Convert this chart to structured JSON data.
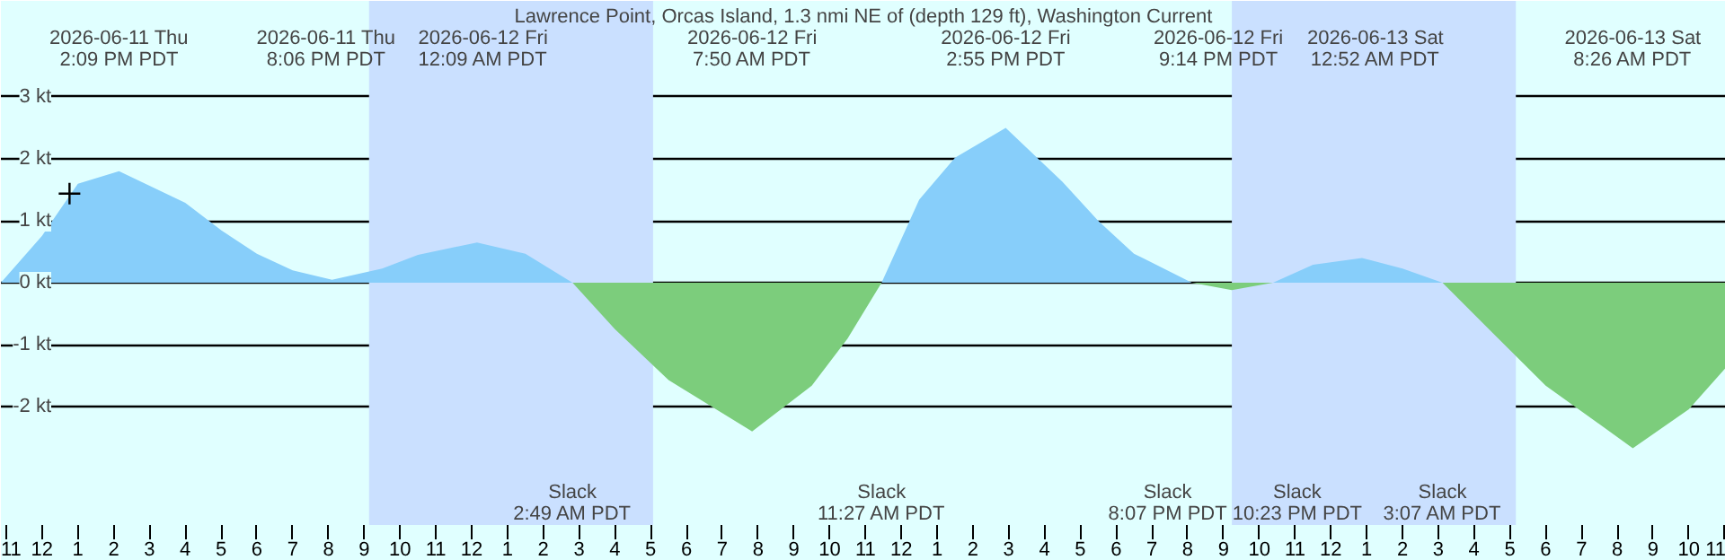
{
  "chart_data": {
    "type": "area",
    "title": "Lawrence Point, Orcas Island, 1.3 nmi NE of (depth 129 ft), Washington Current",
    "x": [
      "2026-06-11T10:51",
      "2026-06-11T12:00",
      "2026-06-11T13:00",
      "2026-06-11T14:09",
      "2026-06-11T16:00",
      "2026-06-11T17:00",
      "2026-06-11T18:00",
      "2026-06-11T19:00",
      "2026-06-11T20:06",
      "2026-06-11T21:30",
      "2026-06-11T22:30",
      "2026-06-12T00:09",
      "2026-06-12T01:30",
      "2026-06-12T02:49",
      "2026-06-12T04:00",
      "2026-06-12T05:30",
      "2026-06-12T07:50",
      "2026-06-12T09:30",
      "2026-06-12T10:30",
      "2026-06-12T11:27",
      "2026-06-12T12:30",
      "2026-06-12T13:30",
      "2026-06-12T14:55",
      "2026-06-12T16:30",
      "2026-06-12T17:30",
      "2026-06-12T18:30",
      "2026-06-12T20:07",
      "2026-06-12T21:14",
      "2026-06-12T22:23",
      "2026-06-12T23:30",
      "2026-06-13T00:52",
      "2026-06-13T02:00",
      "2026-06-13T03:07",
      "2026-06-13T04:30",
      "2026-06-13T06:00",
      "2026-06-13T08:26",
      "2026-06-13T10:00",
      "2026-06-13T11:02"
    ],
    "series": [
      {
        "color": "#87cefa",
        "values": [
          0,
          0.76,
          1.6,
          1.8,
          1.29,
          0.85,
          0.47,
          0.2,
          0.05,
          0.23,
          0.45,
          0.65,
          0.47,
          0,
          null,
          null,
          null,
          null,
          null,
          0,
          1.34,
          2.02,
          2.5,
          1.63,
          1.0,
          0.47,
          0,
          null,
          0,
          0.29,
          0.4,
          0.23,
          0,
          null,
          null,
          null,
          null,
          null
        ]
      },
      {
        "color": "#7ccd7c",
        "values": [
          null,
          null,
          null,
          null,
          null,
          null,
          null,
          null,
          null,
          null,
          null,
          null,
          null,
          0,
          -0.75,
          -1.57,
          -2.4,
          -1.66,
          -0.9,
          0,
          null,
          null,
          null,
          null,
          null,
          null,
          0,
          -0.12,
          0,
          null,
          null,
          null,
          0,
          -0.8,
          -1.66,
          -2.67,
          -2.04,
          -1.37
        ]
      },
      {
        "type": "scatter",
        "marker": "cross",
        "color": "#000000",
        "x": [
          "2026-06-11T12:46"
        ],
        "values": [
          1.44
        ]
      }
    ],
    "xlim": [
      "2026-06-11T10:51",
      "2026-06-13T11:02"
    ],
    "xticks": [
      {
        "value": "2026-06-11T11:00",
        "label": "11"
      },
      {
        "value": "2026-06-11T12:00",
        "label": "12"
      },
      {
        "value": "2026-06-11T13:00",
        "label": "1"
      },
      {
        "value": "2026-06-11T14:00",
        "label": "2"
      },
      {
        "value": "2026-06-11T15:00",
        "label": "3"
      },
      {
        "value": "2026-06-11T16:00",
        "label": "4"
      },
      {
        "value": "2026-06-11T17:00",
        "label": "5"
      },
      {
        "value": "2026-06-11T18:00",
        "label": "6"
      },
      {
        "value": "2026-06-11T19:00",
        "label": "7"
      },
      {
        "value": "2026-06-11T20:00",
        "label": "8"
      },
      {
        "value": "2026-06-11T21:00",
        "label": "9"
      },
      {
        "value": "2026-06-11T22:00",
        "label": "10"
      },
      {
        "value": "2026-06-11T23:00",
        "label": "11"
      },
      {
        "value": "2026-06-12T00:00",
        "label": "12"
      },
      {
        "value": "2026-06-12T01:00",
        "label": "1"
      },
      {
        "value": "2026-06-12T02:00",
        "label": "2"
      },
      {
        "value": "2026-06-12T03:00",
        "label": "3"
      },
      {
        "value": "2026-06-12T04:00",
        "label": "4"
      },
      {
        "value": "2026-06-12T05:00",
        "label": "5"
      },
      {
        "value": "2026-06-12T06:00",
        "label": "6"
      },
      {
        "value": "2026-06-12T07:00",
        "label": "7"
      },
      {
        "value": "2026-06-12T08:00",
        "label": "8"
      },
      {
        "value": "2026-06-12T09:00",
        "label": "9"
      },
      {
        "value": "2026-06-12T10:00",
        "label": "10"
      },
      {
        "value": "2026-06-12T11:00",
        "label": "11"
      },
      {
        "value": "2026-06-12T12:00",
        "label": "12"
      },
      {
        "value": "2026-06-12T13:00",
        "label": "1"
      },
      {
        "value": "2026-06-12T14:00",
        "label": "2"
      },
      {
        "value": "2026-06-12T15:00",
        "label": "3"
      },
      {
        "value": "2026-06-12T16:00",
        "label": "4"
      },
      {
        "value": "2026-06-12T17:00",
        "label": "5"
      },
      {
        "value": "2026-06-12T18:00",
        "label": "6"
      },
      {
        "value": "2026-06-12T19:00",
        "label": "7"
      },
      {
        "value": "2026-06-12T20:00",
        "label": "8"
      },
      {
        "value": "2026-06-12T21:00",
        "label": "9"
      },
      {
        "value": "2026-06-12T22:00",
        "label": "10"
      },
      {
        "value": "2026-06-12T23:00",
        "label": "11"
      },
      {
        "value": "2026-06-13T00:00",
        "label": "12"
      },
      {
        "value": "2026-06-13T01:00",
        "label": "1"
      },
      {
        "value": "2026-06-13T02:00",
        "label": "2"
      },
      {
        "value": "2026-06-13T03:00",
        "label": "3"
      },
      {
        "value": "2026-06-13T04:00",
        "label": "4"
      },
      {
        "value": "2026-06-13T05:00",
        "label": "5"
      },
      {
        "value": "2026-06-13T06:00",
        "label": "6"
      },
      {
        "value": "2026-06-13T07:00",
        "label": "7"
      },
      {
        "value": "2026-06-13T08:00",
        "label": "8"
      },
      {
        "value": "2026-06-13T09:00",
        "label": "9"
      },
      {
        "value": "2026-06-13T10:00",
        "label": "10"
      },
      {
        "value": "2026-06-13T11:00",
        "label": "11"
      }
    ],
    "ylim": [
      -3.91,
      4.55
    ],
    "yticks": [
      {
        "value": 3,
        "label": "3 kt"
      },
      {
        "value": 2,
        "label": "2 kt"
      },
      {
        "value": 1,
        "label": "1 kt"
      },
      {
        "value": 0,
        "label": "0 kt"
      },
      {
        "value": -1,
        "label": "-1 kt"
      },
      {
        "value": -2,
        "label": "-2 kt"
      }
    ],
    "grid": "y",
    "bands": [
      {
        "axis": "x",
        "from": "2026-06-11T21:08",
        "to": "2026-06-12T05:04",
        "color": "#cae0ff"
      },
      {
        "axis": "x",
        "from": "2026-06-12T21:14",
        "to": "2026-06-13T05:10",
        "color": "#cae0ff"
      }
    ],
    "annotations": [
      "2026-06-11 Thu\n2:09 PM PDT",
      "2026-06-11 Thu\n8:06 PM PDT",
      "2026-06-12 Fri\n12:09 AM PDT",
      "2026-06-12 Fri\n7:50 AM PDT",
      "2026-06-12 Fri\n2:55 PM PDT",
      "2026-06-12 Fri\n9:14 PM PDT",
      "2026-06-13 Sat\n12:52 AM PDT",
      "2026-06-13 Sat\n8:26 AM PDT",
      "Slack\n2:49 AM PDT",
      "Slack\n11:27 AM PDT",
      "Slack\n8:07 PM PDT",
      "Slack\n10:23 PM PDT",
      "Slack\n3:07 AM PDT"
    ]
  }
}
